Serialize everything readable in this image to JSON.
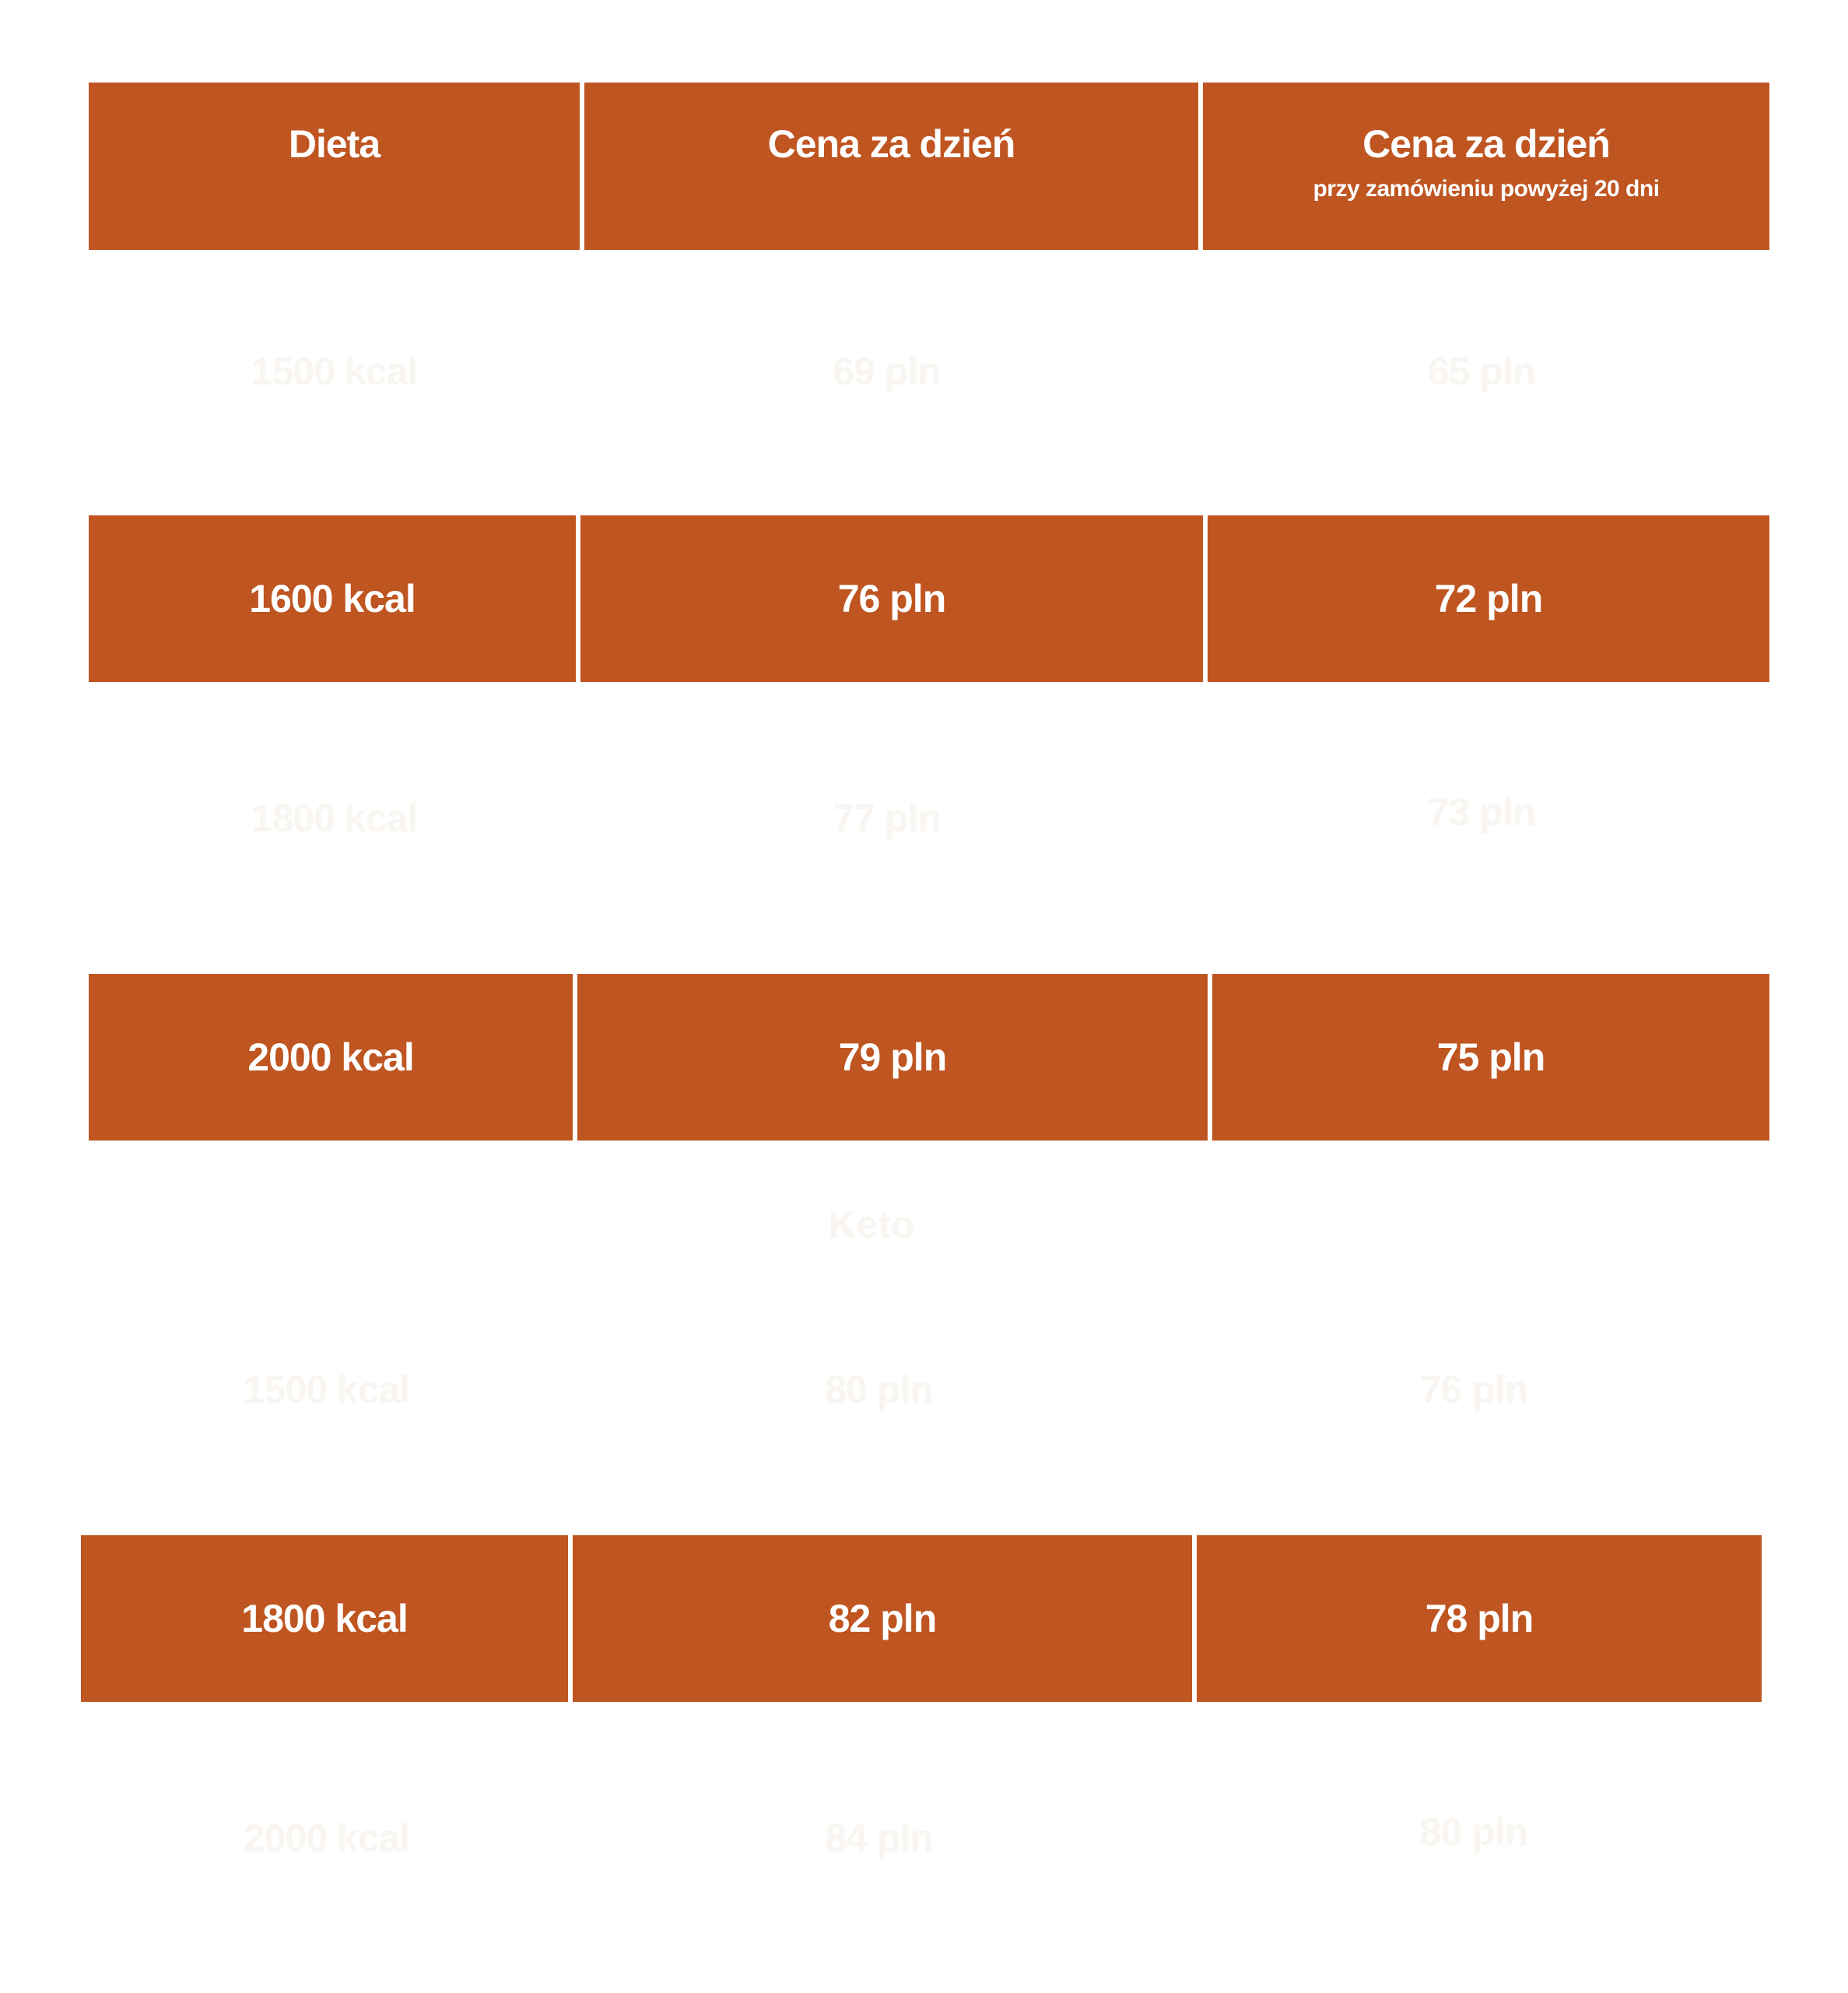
{
  "colors": {
    "accent": "#bf5521",
    "faint_text": "#f9f5f1",
    "band_text": "#ffffff"
  },
  "header": {
    "col1": "Dieta",
    "col2": "Cena za dzień",
    "col3": "Cena za dzień",
    "col3_sub": "przy zamówieniu powyżej 20 dni"
  },
  "rows": [
    {
      "diet": "1500 kcal",
      "price": "69 pln",
      "price20": "65 pln"
    },
    {
      "diet": "1600 kcal",
      "price": "76 pln",
      "price20": "72 pln"
    },
    {
      "diet": "1800 kcal",
      "price": "77 pln",
      "price20": "73 pln"
    },
    {
      "diet": "2000 kcal",
      "price": "79 pln",
      "price20": "75 pln"
    }
  ],
  "keto": {
    "label": "Keto",
    "rows": [
      {
        "diet": "1500 kcal",
        "price": "80 pln",
        "price20": "76 pln"
      },
      {
        "diet": "1800 kcal",
        "price": "82 pln",
        "price20": "78 pln"
      },
      {
        "diet": "2000 kcal",
        "price": "84 pln",
        "price20": "80 pln"
      }
    ]
  }
}
